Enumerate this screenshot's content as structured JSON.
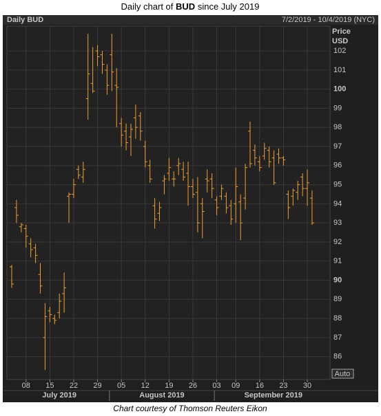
{
  "chart_data": {
    "type": "ohlc",
    "title_prefix": "Daily chart of",
    "title_bold": "BUD",
    "title_suffix": "since July 2019",
    "chart_label": "Daily BUD",
    "range_label": "7/2/2019 - 10/4/2019 (NYC)",
    "y_label_line1": "Price",
    "y_label_line2": "USD",
    "button": "Auto",
    "caption": "Chart courtesy of Thomson Reuters Eikon",
    "color": "#f0a030",
    "grid": true,
    "ylim": [
      84.8,
      103.3
    ],
    "yticks": [
      86,
      87,
      88,
      89,
      90,
      91,
      92,
      93,
      94,
      95,
      96,
      97,
      98,
      99,
      100,
      101,
      102
    ],
    "x": [
      "2019-07-02",
      "2019-07-03",
      "2019-07-05",
      "2019-07-08",
      "2019-07-09",
      "2019-07-10",
      "2019-07-11",
      "2019-07-12",
      "2019-07-15",
      "2019-07-16",
      "2019-07-17",
      "2019-07-18",
      "2019-07-19",
      "2019-07-22",
      "2019-07-23",
      "2019-07-24",
      "2019-07-25",
      "2019-07-26",
      "2019-07-29",
      "2019-07-30",
      "2019-07-31",
      "2019-08-01",
      "2019-08-02",
      "2019-08-05",
      "2019-08-06",
      "2019-08-07",
      "2019-08-08",
      "2019-08-09",
      "2019-08-12",
      "2019-08-13",
      "2019-08-14",
      "2019-08-15",
      "2019-08-16",
      "2019-08-19",
      "2019-08-20",
      "2019-08-21",
      "2019-08-22",
      "2019-08-23",
      "2019-08-26",
      "2019-08-27",
      "2019-08-28",
      "2019-08-29",
      "2019-08-30",
      "2019-09-03",
      "2019-09-04",
      "2019-09-05",
      "2019-09-06",
      "2019-09-09",
      "2019-09-10",
      "2019-09-11",
      "2019-09-12",
      "2019-09-13",
      "2019-09-16",
      "2019-09-17",
      "2019-09-18",
      "2019-09-19",
      "2019-09-20",
      "2019-09-23",
      "2019-09-24",
      "2019-09-25",
      "2019-09-26",
      "2019-09-27",
      "2019-09-30",
      "2019-10-01"
    ],
    "open": [
      90.7,
      93.8,
      92.8,
      92.7,
      91.9,
      91.7,
      90.3,
      87.0,
      88.4,
      88.0,
      88.3,
      89.3,
      94.4,
      94.5,
      95.8,
      95.4,
      99.5,
      100.3,
      102.0,
      101.8,
      101.0,
      101.8,
      100.2,
      98.2,
      97.8,
      97.5,
      98.5,
      98.6,
      97.0,
      96.0,
      93.9,
      93.5,
      95.2,
      95.6,
      95.3,
      96.0,
      95.8,
      95.6,
      94.9,
      94.6,
      94.0,
      95.3,
      95.3,
      94.2,
      94.4,
      94.4,
      93.9,
      94.0,
      94.1,
      94.3,
      97.8,
      96.8,
      96.2,
      96.5,
      96.8,
      96.4,
      96.6,
      96.4,
      94.5,
      94.4,
      94.6,
      95.4,
      94.8,
      94.3
    ],
    "high": [
      90.8,
      94.2,
      93.0,
      92.9,
      92.2,
      91.9,
      90.9,
      88.8,
      88.6,
      88.2,
      89.3,
      90.4,
      94.6,
      95.3,
      96.0,
      96.2,
      102.9,
      102.2,
      102.3,
      102.0,
      101.3,
      102.9,
      101.1,
      98.5,
      98.2,
      98.2,
      99.2,
      98.8,
      97.3,
      96.3,
      94.3,
      94.1,
      95.5,
      96.4,
      95.7,
      96.4,
      96.2,
      96.2,
      95.3,
      95.4,
      94.3,
      95.8,
      95.6,
      94.4,
      95.0,
      94.6,
      94.2,
      95.9,
      94.5,
      96.1,
      98.3,
      97.1,
      96.5,
      97.2,
      97.0,
      96.8,
      96.9,
      96.5,
      94.7,
      94.8,
      95.2,
      95.6,
      95.8,
      94.7
    ],
    "low": [
      89.6,
      93.0,
      92.5,
      91.7,
      91.2,
      90.9,
      89.3,
      85.3,
      87.8,
      87.7,
      88.0,
      88.3,
      93.0,
      94.3,
      95.3,
      95.1,
      98.4,
      99.8,
      101.2,
      100.8,
      99.7,
      99.9,
      98.0,
      97.0,
      96.8,
      96.5,
      97.4,
      97.3,
      95.9,
      95.1,
      92.7,
      93.1,
      94.5,
      95.2,
      94.9,
      95.5,
      95.2,
      93.9,
      94.3,
      92.5,
      92.2,
      94.6,
      94.3,
      93.4,
      94.2,
      93.5,
      92.9,
      93.0,
      92.1,
      93.7,
      95.9,
      96.0,
      95.7,
      96.3,
      95.9,
      95.0,
      96.1,
      96.0,
      93.2,
      93.9,
      94.2,
      94.4,
      93.9,
      92.9
    ],
    "close": [
      89.8,
      93.4,
      92.9,
      92.3,
      91.6,
      91.3,
      89.7,
      88.1,
      88.2,
      87.9,
      88.9,
      89.6,
      94.5,
      95.0,
      95.5,
      95.8,
      100.8,
      99.9,
      101.7,
      101.3,
      100.2,
      100.9,
      100.1,
      97.6,
      97.2,
      97.9,
      98.0,
      97.8,
      96.2,
      95.3,
      93.2,
      93.8,
      95.3,
      95.9,
      95.3,
      96.1,
      95.4,
      94.9,
      94.5,
      93.0,
      93.6,
      95.2,
      94.8,
      93.8,
      94.8,
      93.8,
      93.2,
      94.9,
      93.0,
      95.9,
      96.1,
      96.4,
      95.9,
      96.9,
      96.2,
      95.1,
      96.4,
      96.3,
      93.8,
      94.7,
      95.0,
      94.8,
      95.1,
      93.0
    ],
    "xticks": [
      {
        "value": "2019-07-08",
        "label": "08"
      },
      {
        "value": "2019-07-15",
        "label": "15"
      },
      {
        "value": "2019-07-22",
        "label": "22"
      },
      {
        "value": "2019-07-29",
        "label": "29"
      },
      {
        "value": "2019-08-05",
        "label": "05"
      },
      {
        "value": "2019-08-12",
        "label": "12"
      },
      {
        "value": "2019-08-19",
        "label": "19"
      },
      {
        "value": "2019-08-26",
        "label": "26"
      },
      {
        "value": "2019-09-03",
        "label": "03"
      },
      {
        "value": "2019-09-09",
        "label": "09"
      },
      {
        "value": "2019-09-16",
        "label": "16"
      },
      {
        "value": "2019-09-23",
        "label": "23"
      },
      {
        "value": "2019-09-30",
        "label": "30"
      }
    ],
    "months": [
      {
        "value": "2019-07",
        "label": "July 2019"
      },
      {
        "value": "2019-08",
        "label": "August 2019"
      },
      {
        "value": "2019-09",
        "label": "September 2019"
      }
    ]
  }
}
